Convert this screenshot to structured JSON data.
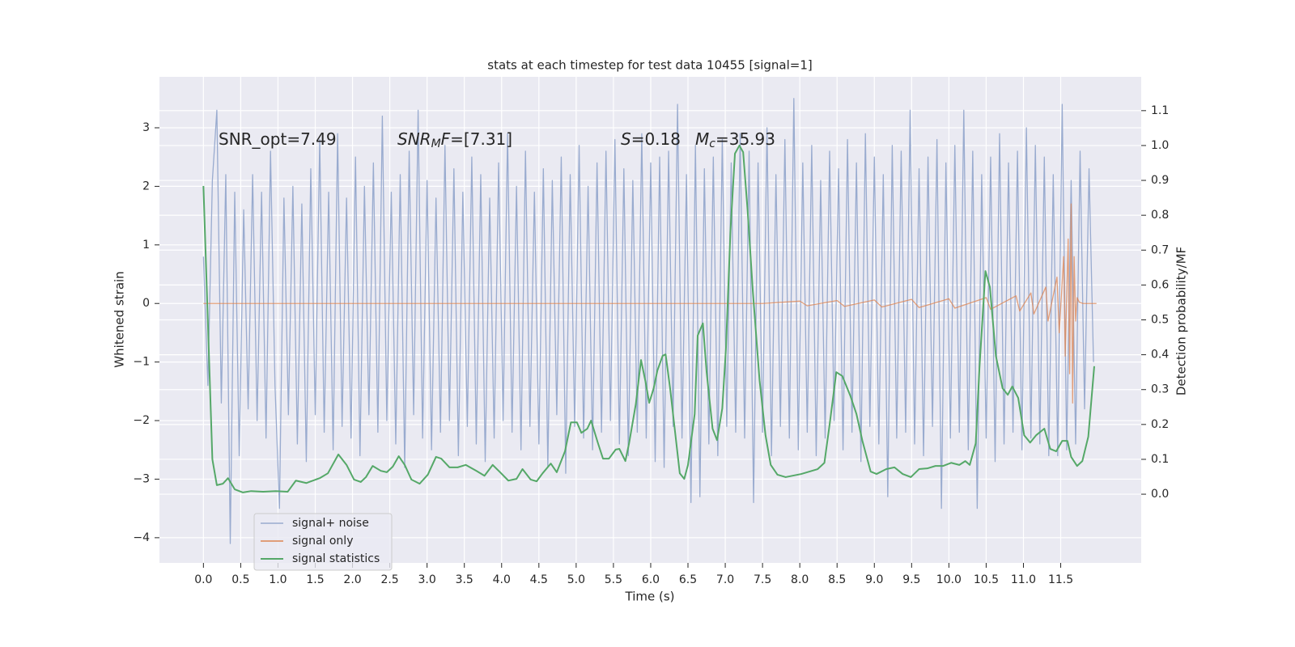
{
  "chart_data": {
    "type": "line",
    "title": "stats at each timestep for test data 10455 [signal=1]",
    "xlabel": "Time (s)",
    "ylabel": "Whitened strain",
    "y2label": "Detection probability/MF",
    "annotations": [
      [
        {
          "text": "SNR_opt=7.49"
        }
      ],
      [
        {
          "text": "SNR",
          "italic": true
        },
        {
          "text": "M",
          "italic": true,
          "sub": true
        },
        {
          "text": "F",
          "italic": true
        },
        {
          "text": "=[7.31]"
        }
      ],
      [
        {
          "text": "S",
          "italic": true
        },
        {
          "text": "=0.18"
        }
      ],
      [
        {
          "text": "M",
          "italic": true
        },
        {
          "text": "c",
          "italic": true,
          "sub": true
        },
        {
          "text": "=35.93"
        }
      ]
    ],
    "xlim": [
      -0.59,
      12.58
    ],
    "ylim": [
      -4.43,
      3.87
    ],
    "y2lim": [
      -0.197,
      1.197
    ],
    "xticks": [
      {
        "value": 0,
        "label": "0.0"
      },
      0.5,
      {
        "value": 1,
        "label": "1.0"
      },
      1.5,
      {
        "value": 2,
        "label": "2.0"
      },
      2.5,
      {
        "value": 3,
        "label": "3.0"
      },
      3.5,
      {
        "value": 4,
        "label": "4.0"
      },
      4.5,
      {
        "value": 5,
        "label": "5.0"
      },
      5.5,
      {
        "value": 6,
        "label": "6.0"
      },
      6.5,
      {
        "value": 7,
        "label": "7.0"
      },
      7.5,
      {
        "value": 8,
        "label": "8.0"
      },
      8.5,
      {
        "value": 9,
        "label": "9.0"
      },
      9.5,
      {
        "value": 10,
        "label": "10.0"
      },
      10.5,
      {
        "value": 11,
        "label": "11.0"
      },
      11.5
    ],
    "yticks": [
      {
        "value": -4,
        "label": "−4"
      },
      {
        "value": -3,
        "label": "−3"
      },
      {
        "value": -2,
        "label": "−2"
      },
      {
        "value": -1,
        "label": "−1"
      },
      0,
      1,
      2,
      3
    ],
    "y2ticks": [
      {
        "value": 0,
        "label": "0.0"
      },
      0.1,
      0.2,
      0.3,
      0.4,
      0.5,
      0.6,
      0.7,
      0.8,
      0.9,
      {
        "value": 1,
        "label": "1.0"
      },
      1.1
    ],
    "grid": true,
    "legend": "lower left",
    "series": [
      {
        "name": "signal+ noise",
        "color": "#99abcf",
        "x": [
          0,
          0.06,
          0.12,
          0.18,
          0.24,
          0.3,
          0.36,
          0.42,
          0.48,
          0.54,
          0.6,
          0.66,
          0.72,
          0.78,
          0.84,
          0.9,
          0.96,
          1.02,
          1.08,
          1.14,
          1.2,
          1.26,
          1.32,
          1.38,
          1.44,
          1.5,
          1.56,
          1.62,
          1.68,
          1.74,
          1.8,
          1.86,
          1.92,
          1.98,
          2.04,
          2.1,
          2.16,
          2.22,
          2.28,
          2.34,
          2.4,
          2.46,
          2.52,
          2.58,
          2.64,
          2.7,
          2.76,
          2.82,
          2.88,
          2.94,
          3.0,
          3.06,
          3.12,
          3.18,
          3.24,
          3.3,
          3.36,
          3.42,
          3.48,
          3.54,
          3.6,
          3.66,
          3.72,
          3.78,
          3.84,
          3.9,
          3.96,
          4.02,
          4.08,
          4.14,
          4.2,
          4.26,
          4.32,
          4.38,
          4.44,
          4.5,
          4.56,
          4.62,
          4.68,
          4.74,
          4.8,
          4.86,
          4.92,
          4.98,
          5.04,
          5.1,
          5.16,
          5.22,
          5.28,
          5.34,
          5.4,
          5.46,
          5.52,
          5.58,
          5.64,
          5.7,
          5.76,
          5.82,
          5.88,
          5.94,
          6.0,
          6.06,
          6.12,
          6.18,
          6.24,
          6.3,
          6.36,
          6.42,
          6.48,
          6.54,
          6.6,
          6.66,
          6.72,
          6.78,
          6.84,
          6.9,
          6.96,
          7.02,
          7.08,
          7.14,
          7.2,
          7.26,
          7.32,
          7.38,
          7.44,
          7.5,
          7.56,
          7.62,
          7.68,
          7.74,
          7.8,
          7.86,
          7.92,
          7.98,
          8.04,
          8.1,
          8.16,
          8.22,
          8.28,
          8.34,
          8.4,
          8.46,
          8.52,
          8.58,
          8.64,
          8.7,
          8.76,
          8.82,
          8.88,
          8.94,
          9.0,
          9.06,
          9.12,
          9.18,
          9.24,
          9.3,
          9.36,
          9.42,
          9.48,
          9.54,
          9.6,
          9.66,
          9.72,
          9.78,
          9.84,
          9.9,
          9.96,
          10.02,
          10.08,
          10.14,
          10.2,
          10.26,
          10.32,
          10.38,
          10.44,
          10.5,
          10.56,
          10.62,
          10.68,
          10.74,
          10.8,
          10.86,
          10.92,
          10.98,
          11.04,
          11.1,
          11.16,
          11.22,
          11.28,
          11.34,
          11.4,
          11.46,
          11.52,
          11.58,
          11.64,
          11.7,
          11.76,
          11.82,
          11.88,
          11.94
        ],
        "values": [
          0.8,
          -1.4,
          2.1,
          3.3,
          -1.7,
          2.2,
          -4.1,
          1.9,
          -2.6,
          1.6,
          -1.8,
          2.2,
          -2.0,
          1.9,
          -2.3,
          2.6,
          -1.4,
          -3.5,
          1.8,
          -1.9,
          2.0,
          -2.4,
          1.7,
          -2.7,
          2.3,
          -1.9,
          2.8,
          -2.2,
          1.9,
          -2.5,
          2.9,
          -2.1,
          1.8,
          -2.3,
          2.5,
          -2.6,
          2.0,
          -1.9,
          2.4,
          -2.2,
          3.2,
          -2.0,
          1.9,
          -2.4,
          2.2,
          -2.8,
          2.6,
          -1.9,
          3.3,
          -2.3,
          2.1,
          -2.5,
          1.8,
          -2.2,
          2.7,
          -2.0,
          2.3,
          -2.6,
          1.9,
          -2.1,
          2.5,
          -2.4,
          2.2,
          -2.7,
          1.8,
          -2.3,
          2.4,
          -2.0,
          2.9,
          -2.2,
          2.0,
          -2.5,
          2.6,
          -2.1,
          1.9,
          -2.4,
          2.3,
          -2.8,
          2.1,
          -1.9,
          2.5,
          -2.9,
          2.2,
          -2.1,
          2.7,
          -2.3,
          2.0,
          -2.5,
          2.4,
          -2.2,
          2.6,
          -2.0,
          2.8,
          -2.4,
          2.3,
          -2.6,
          2.1,
          -2.2,
          2.9,
          -2.3,
          2.4,
          -2.7,
          2.5,
          -2.8,
          2.6,
          -2.1,
          3.4,
          -2.3,
          2.2,
          -3.4,
          2.7,
          -3.3,
          2.3,
          -2.4,
          2.5,
          -2.6,
          2.8,
          -2.1,
          2.4,
          -2.2,
          2.9,
          -2.3,
          2.6,
          -3.4,
          2.4,
          -2.2,
          3.0,
          -2.6,
          2.2,
          -2.1,
          2.8,
          -2.3,
          3.5,
          -2.5,
          2.4,
          -2.2,
          2.7,
          -2.6,
          2.1,
          -2.3,
          2.6,
          -2.0,
          2.3,
          -2.5,
          2.8,
          -2.2,
          2.4,
          -2.7,
          2.9,
          -2.1,
          2.5,
          -2.4,
          2.2,
          -3.3,
          2.7,
          -2.3,
          2.6,
          -2.2,
          3.3,
          -2.4,
          2.3,
          -2.6,
          2.5,
          -2.1,
          2.8,
          -3.5,
          2.4,
          -2.3,
          2.7,
          -2.2,
          3.3,
          -2.5,
          2.6,
          -3.5,
          2.2,
          -2.3,
          2.5,
          -2.7,
          2.9,
          -2.4,
          2.4,
          -2.2,
          2.6,
          -2.5,
          3.0,
          -2.3,
          2.7,
          -2.4,
          2.5,
          -2.6,
          2.2,
          -2.6,
          3.4,
          -2.5,
          2.1,
          -2.4,
          2.6,
          -1.8,
          2.3,
          -1.0
        ]
      },
      {
        "name": "signal only",
        "color": "#dd8452",
        "x": [
          0,
          7.5,
          8.0,
          8.1,
          8.5,
          8.6,
          9.0,
          9.1,
          9.5,
          9.6,
          10.0,
          10.08,
          10.5,
          10.56,
          10.9,
          10.95,
          11.1,
          11.14,
          11.3,
          11.33,
          11.45,
          11.48,
          11.54,
          11.56,
          11.6,
          11.62,
          11.64,
          11.66,
          11.68,
          11.7,
          11.72,
          11.75,
          11.8,
          11.98
        ],
        "values": [
          0,
          0,
          0.04,
          -0.04,
          0.05,
          -0.05,
          0.06,
          -0.06,
          0.07,
          -0.07,
          0.08,
          -0.08,
          0.1,
          -0.1,
          0.13,
          -0.13,
          0.18,
          -0.18,
          0.28,
          -0.3,
          0.45,
          -0.5,
          0.8,
          -0.9,
          1.1,
          -1.2,
          1.7,
          -1.7,
          0.8,
          -0.3,
          0.1,
          0.02,
          0,
          0
        ]
      },
      {
        "name": "signal statistics",
        "color": "#55a868",
        "axis": "y2",
        "x": [
          0,
          0.12,
          0.18,
          0.26,
          0.33,
          0.42,
          0.53,
          0.64,
          0.8,
          0.97,
          1.13,
          1.24,
          1.38,
          1.56,
          1.67,
          1.81,
          1.92,
          2.02,
          2.11,
          2.18,
          2.27,
          2.38,
          2.46,
          2.54,
          2.62,
          2.7,
          2.79,
          2.9,
          3.01,
          3.12,
          3.19,
          3.3,
          3.41,
          3.52,
          3.66,
          3.77,
          3.88,
          3.98,
          4.09,
          4.2,
          4.28,
          4.39,
          4.47,
          4.55,
          4.66,
          4.74,
          4.85,
          4.93,
          5.01,
          5.07,
          5.15,
          5.2,
          5.29,
          5.36,
          5.44,
          5.53,
          5.58,
          5.66,
          5.71,
          5.8,
          5.87,
          5.93,
          5.98,
          6.04,
          6.09,
          6.16,
          6.2,
          6.26,
          6.35,
          6.39,
          6.45,
          6.5,
          6.59,
          6.63,
          6.7,
          6.75,
          6.83,
          6.89,
          6.96,
          7.01,
          7.07,
          7.13,
          7.19,
          7.24,
          7.3,
          7.37,
          7.46,
          7.54,
          7.61,
          7.7,
          7.81,
          8.02,
          8.24,
          8.33,
          8.4,
          8.49,
          8.57,
          8.68,
          8.76,
          8.84,
          8.95,
          9.03,
          9.16,
          9.27,
          9.38,
          9.49,
          9.6,
          9.71,
          9.82,
          9.92,
          10.03,
          10.14,
          10.22,
          10.28,
          10.36,
          10.41,
          10.49,
          10.55,
          10.63,
          10.72,
          10.79,
          10.85,
          10.93,
          11.01,
          11.09,
          11.17,
          11.28,
          11.36,
          11.44,
          11.52,
          11.59,
          11.64,
          11.72,
          11.79,
          11.87,
          11.95
        ],
        "values": [
          0.884,
          0.1,
          0.026,
          0.03,
          0.046,
          0.014,
          0.005,
          0.009,
          0.007,
          0.009,
          0.007,
          0.039,
          0.032,
          0.046,
          0.06,
          0.114,
          0.084,
          0.042,
          0.035,
          0.049,
          0.081,
          0.067,
          0.063,
          0.079,
          0.109,
          0.084,
          0.042,
          0.03,
          0.056,
          0.107,
          0.102,
          0.077,
          0.077,
          0.084,
          0.067,
          0.053,
          0.084,
          0.063,
          0.039,
          0.044,
          0.072,
          0.042,
          0.037,
          0.06,
          0.088,
          0.063,
          0.123,
          0.206,
          0.206,
          0.176,
          0.188,
          0.211,
          0.148,
          0.102,
          0.102,
          0.128,
          0.13,
          0.095,
          0.146,
          0.258,
          0.385,
          0.323,
          0.262,
          0.304,
          0.355,
          0.397,
          0.401,
          0.304,
          0.135,
          0.06,
          0.044,
          0.084,
          0.23,
          0.455,
          0.49,
          0.35,
          0.188,
          0.155,
          0.246,
          0.42,
          0.756,
          0.977,
          1.0,
          0.981,
          0.814,
          0.582,
          0.327,
          0.169,
          0.084,
          0.056,
          0.049,
          0.058,
          0.072,
          0.09,
          0.2,
          0.35,
          0.339,
          0.281,
          0.23,
          0.153,
          0.065,
          0.058,
          0.072,
          0.077,
          0.058,
          0.049,
          0.072,
          0.074,
          0.081,
          0.081,
          0.09,
          0.084,
          0.095,
          0.084,
          0.146,
          0.362,
          0.64,
          0.594,
          0.397,
          0.304,
          0.285,
          0.309,
          0.276,
          0.169,
          0.148,
          0.169,
          0.188,
          0.13,
          0.123,
          0.153,
          0.153,
          0.107,
          0.081,
          0.095,
          0.165,
          0.367
        ]
      }
    ]
  }
}
